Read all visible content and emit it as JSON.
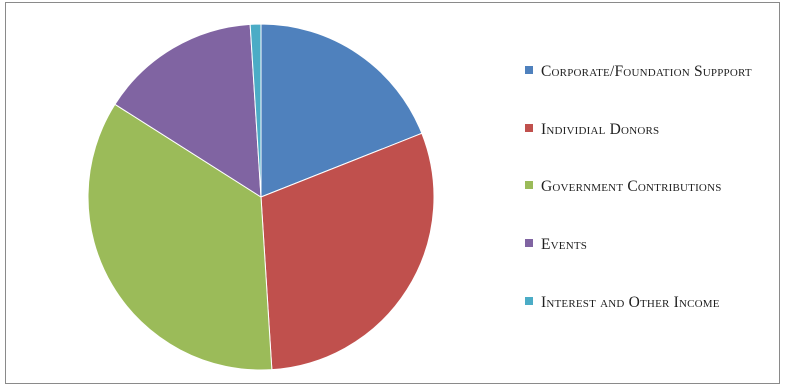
{
  "chart_data": {
    "type": "pie",
    "title": "",
    "categories": [
      "Corporate/Foundation Suppport",
      "Individial  Donors",
      "Government Contributions",
      "Events",
      "Interest and Other Income"
    ],
    "values": [
      19,
      30,
      35,
      15,
      1
    ],
    "colors": [
      "#4f81bd",
      "#c0504d",
      "#9bbb59",
      "#8064a2",
      "#4bacc6"
    ],
    "start_angle_deg": 0,
    "direction": "clockwise",
    "legend_position": "right"
  }
}
